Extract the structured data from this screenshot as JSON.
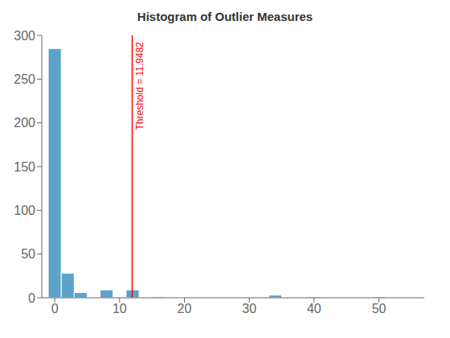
{
  "chart_data": {
    "type": "histogram",
    "title": "Histogram of Outlier Measures",
    "bins": [
      -1,
      1,
      3,
      5,
      7,
      9,
      11,
      13,
      15,
      17,
      19,
      21,
      23,
      25,
      27,
      29,
      31,
      33,
      35,
      37,
      39,
      41,
      43,
      45,
      47,
      49,
      51,
      53,
      55
    ],
    "values": [
      285,
      28,
      6,
      0,
      9,
      0,
      9,
      0,
      1,
      0,
      0,
      0,
      0,
      0,
      0,
      0,
      0,
      3,
      0,
      0,
      1,
      0,
      0,
      0,
      0,
      1,
      0,
      0
    ],
    "color": "#5ba3c9",
    "xlim": [
      -2,
      57
    ],
    "xticks": [
      0,
      10,
      20,
      30,
      40,
      50
    ],
    "ylim": [
      0,
      300
    ],
    "yticks": [
      0,
      50,
      100,
      150,
      200,
      250,
      300
    ],
    "grid": false,
    "annotations": [
      {
        "type": "vline",
        "x": 11.9482,
        "text": "Threshold = 11.9482",
        "color": "red"
      }
    ]
  }
}
